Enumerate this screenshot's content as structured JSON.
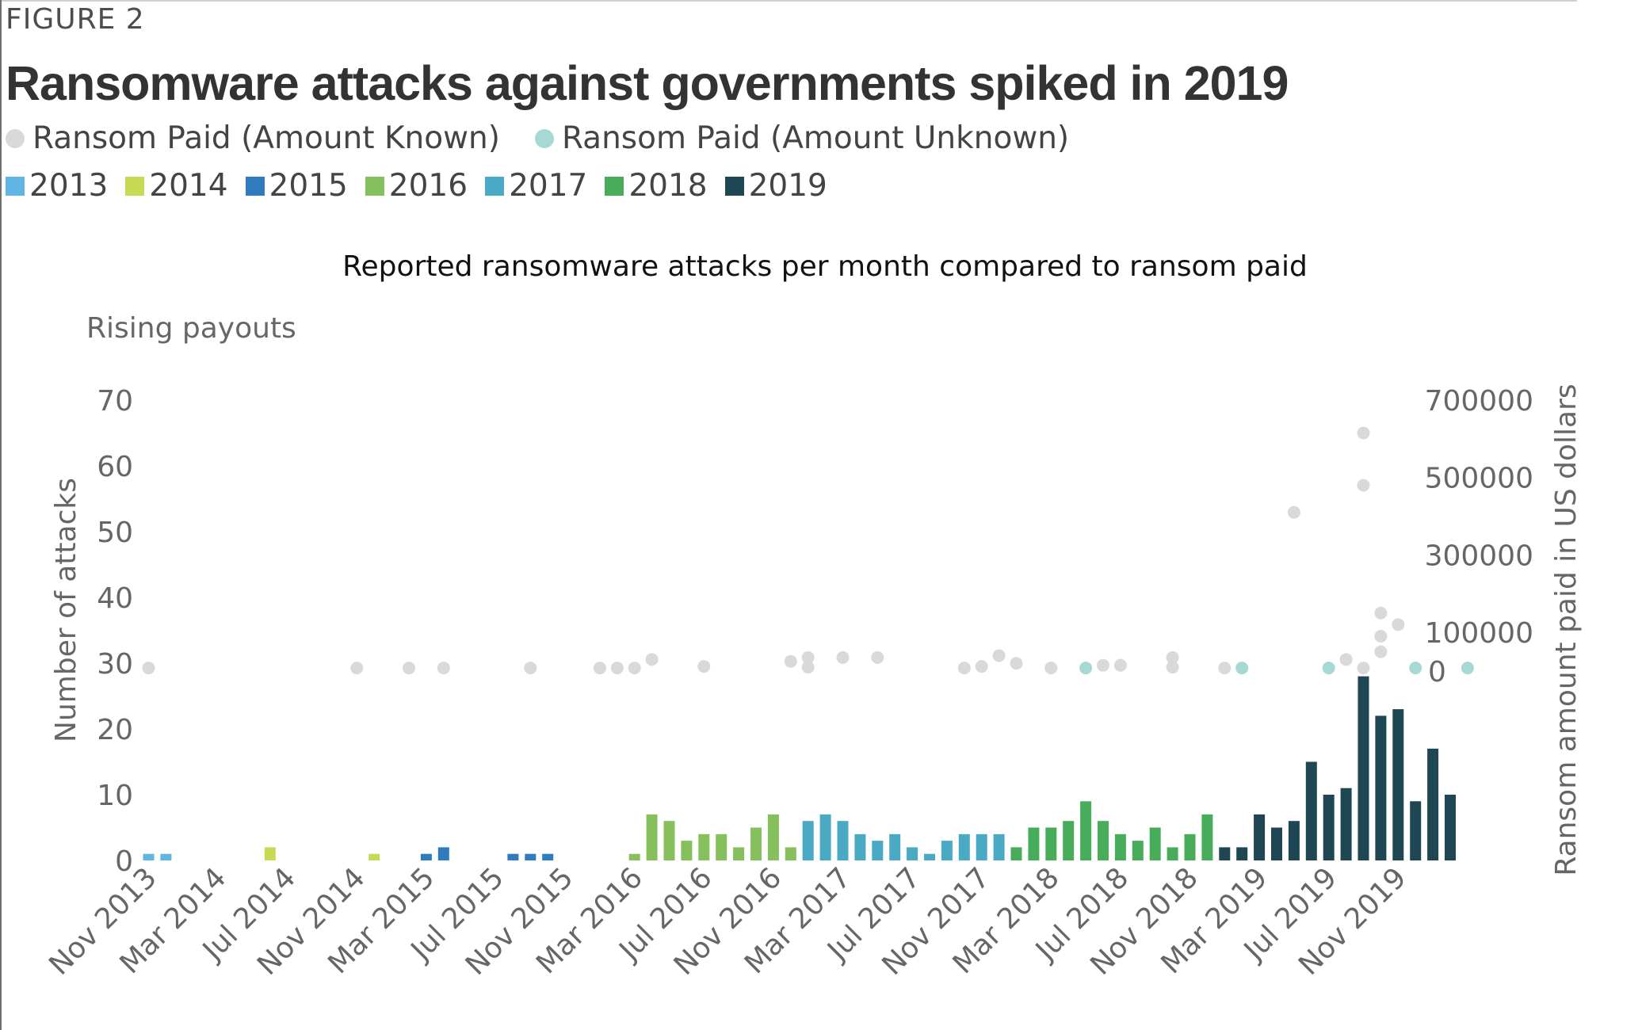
{
  "figure_label": "FIGURE 2",
  "headline": "Ransomware attacks against governments spiked in 2019",
  "legend": {
    "dots": [
      {
        "label": "Ransom Paid (Amount Known)",
        "color": "#d9d9d9"
      },
      {
        "label": "Ransom Paid (Amount Unknown)",
        "color": "#a6d9d3"
      }
    ],
    "years": [
      {
        "label": "2013",
        "color": "#5fb6e3"
      },
      {
        "label": "2014",
        "color": "#c7d955"
      },
      {
        "label": "2015",
        "color": "#2f7bbd"
      },
      {
        "label": "2016",
        "color": "#86c05d"
      },
      {
        "label": "2017",
        "color": "#4aa9c3"
      },
      {
        "label": "2018",
        "color": "#48ad5a"
      },
      {
        "label": "2019",
        "color": "#1f4653"
      }
    ]
  },
  "chart_data": {
    "type": "bar",
    "title": "Reported ransomware attacks per month compared to ransom paid",
    "subtitle": "Rising payouts",
    "ylabel": "Number of attacks",
    "ylabel_right": "Ransom amount paid in US dollars",
    "ylim": [
      0,
      70
    ],
    "yticks": [
      "70",
      "60",
      "50",
      "40",
      "30",
      "20",
      "10",
      "0"
    ],
    "ylim_right": [
      0,
      700000
    ],
    "yticks_right": [
      "700000",
      "500000",
      "300000",
      "100000",
      "0"
    ],
    "xtick_labels": [
      "Nov 2013",
      "Mar 2014",
      "Jul 2014",
      "Nov 2014",
      "Mar 2015",
      "Jul 2015",
      "Nov 2015",
      "Mar 2016",
      "Jul 2016",
      "Nov 2016",
      "Mar 2017",
      "Jul 2017",
      "Nov 2017",
      "Mar 2018",
      "Jul 2018",
      "Nov 2018",
      "Mar 2019",
      "Jul 2019",
      "Nov 2019"
    ],
    "start_label": "Nov 2013",
    "grid": false,
    "attacks": [
      1,
      1,
      0,
      0,
      0,
      0,
      0,
      2,
      0,
      0,
      0,
      0,
      0,
      1,
      0,
      0,
      1,
      2,
      0,
      0,
      0,
      1,
      1,
      1,
      0,
      0,
      0,
      0,
      1,
      7,
      6,
      3,
      4,
      4,
      2,
      5,
      7,
      2,
      6,
      7,
      6,
      4,
      3,
      4,
      2,
      1,
      3,
      4,
      4,
      4,
      2,
      5,
      5,
      6,
      9,
      6,
      4,
      3,
      5,
      2,
      4,
      7,
      2,
      2,
      7,
      5,
      6,
      15,
      10,
      11,
      28,
      22,
      23,
      9,
      17,
      10
    ],
    "year_of_bar": [
      "2013",
      "2013",
      "2014",
      "2014",
      "2014",
      "2014",
      "2014",
      "2014",
      "2014",
      "2014",
      "2014",
      "2014",
      "2014",
      "2014",
      "2015",
      "2015",
      "2015",
      "2015",
      "2015",
      "2015",
      "2015",
      "2015",
      "2015",
      "2015",
      "2015",
      "2015",
      "2016",
      "2016",
      "2016",
      "2016",
      "2016",
      "2016",
      "2016",
      "2016",
      "2016",
      "2016",
      "2016",
      "2016",
      "2017",
      "2017",
      "2017",
      "2017",
      "2017",
      "2017",
      "2017",
      "2017",
      "2017",
      "2017",
      "2017",
      "2017",
      "2018",
      "2018",
      "2018",
      "2018",
      "2018",
      "2018",
      "2018",
      "2018",
      "2018",
      "2018",
      "2018",
      "2018",
      "2019",
      "2019",
      "2019",
      "2019",
      "2019",
      "2019",
      "2019",
      "2019",
      "2019",
      "2019",
      "2019",
      "2019",
      "2019",
      "2019"
    ],
    "ransom_paid": [
      {
        "month": "Nov 2013",
        "amount": 8000,
        "known": true
      },
      {
        "month": "Nov 2014",
        "amount": 8000,
        "known": true
      },
      {
        "month": "Feb 2015",
        "amount": 8000,
        "known": true
      },
      {
        "month": "Apr 2015",
        "amount": 8000,
        "known": true
      },
      {
        "month": "Sep 2015",
        "amount": 8000,
        "known": true
      },
      {
        "month": "Jan 2016",
        "amount": 8000,
        "known": true
      },
      {
        "month": "Feb 2016",
        "amount": 8000,
        "known": true
      },
      {
        "month": "Mar 2016",
        "amount": 8000,
        "known": true
      },
      {
        "month": "Apr 2016",
        "amount": 30000,
        "known": true
      },
      {
        "month": "Jul 2016",
        "amount": 12000,
        "known": true
      },
      {
        "month": "Dec 2016",
        "amount": 25000,
        "known": true
      },
      {
        "month": "Jan 2017",
        "amount": 35000,
        "known": true
      },
      {
        "month": "Jan 2017",
        "amount": 10000,
        "known": true
      },
      {
        "month": "Mar 2017",
        "amount": 35000,
        "known": true
      },
      {
        "month": "May 2017",
        "amount": 35000,
        "known": true
      },
      {
        "month": "Oct 2017",
        "amount": 8000,
        "known": true
      },
      {
        "month": "Nov 2017",
        "amount": 12000,
        "known": true
      },
      {
        "month": "Dec 2017",
        "amount": 40000,
        "known": true
      },
      {
        "month": "Jan 2018",
        "amount": 20000,
        "known": true
      },
      {
        "month": "Mar 2018",
        "amount": 8000,
        "known": true
      },
      {
        "month": "May 2018",
        "amount": 8000,
        "known": false
      },
      {
        "month": "Jun 2018",
        "amount": 15000,
        "known": true
      },
      {
        "month": "Jul 2018",
        "amount": 15000,
        "known": true
      },
      {
        "month": "Oct 2018",
        "amount": 35000,
        "known": true
      },
      {
        "month": "Oct 2018",
        "amount": 10000,
        "known": true
      },
      {
        "month": "Jan 2019",
        "amount": 8000,
        "known": true
      },
      {
        "month": "Feb 2019",
        "amount": 8000,
        "known": false
      },
      {
        "month": "May 2019",
        "amount": 410000,
        "known": true
      },
      {
        "month": "Jul 2019",
        "amount": 8000,
        "known": false
      },
      {
        "month": "Aug 2019",
        "amount": 30000,
        "known": true
      },
      {
        "month": "Sep 2019",
        "amount": 615000,
        "known": true
      },
      {
        "month": "Sep 2019",
        "amount": 480000,
        "known": true
      },
      {
        "month": "Sep 2019",
        "amount": 8000,
        "known": true
      },
      {
        "month": "Oct 2019",
        "amount": 150000,
        "known": true
      },
      {
        "month": "Oct 2019",
        "amount": 90000,
        "known": true
      },
      {
        "month": "Oct 2019",
        "amount": 50000,
        "known": true
      },
      {
        "month": "Nov 2019",
        "amount": 120000,
        "known": true
      },
      {
        "month": "Dec 2019",
        "amount": 8000,
        "known": false
      },
      {
        "month": "Mar 2020",
        "amount": 8000,
        "known": false
      }
    ]
  }
}
